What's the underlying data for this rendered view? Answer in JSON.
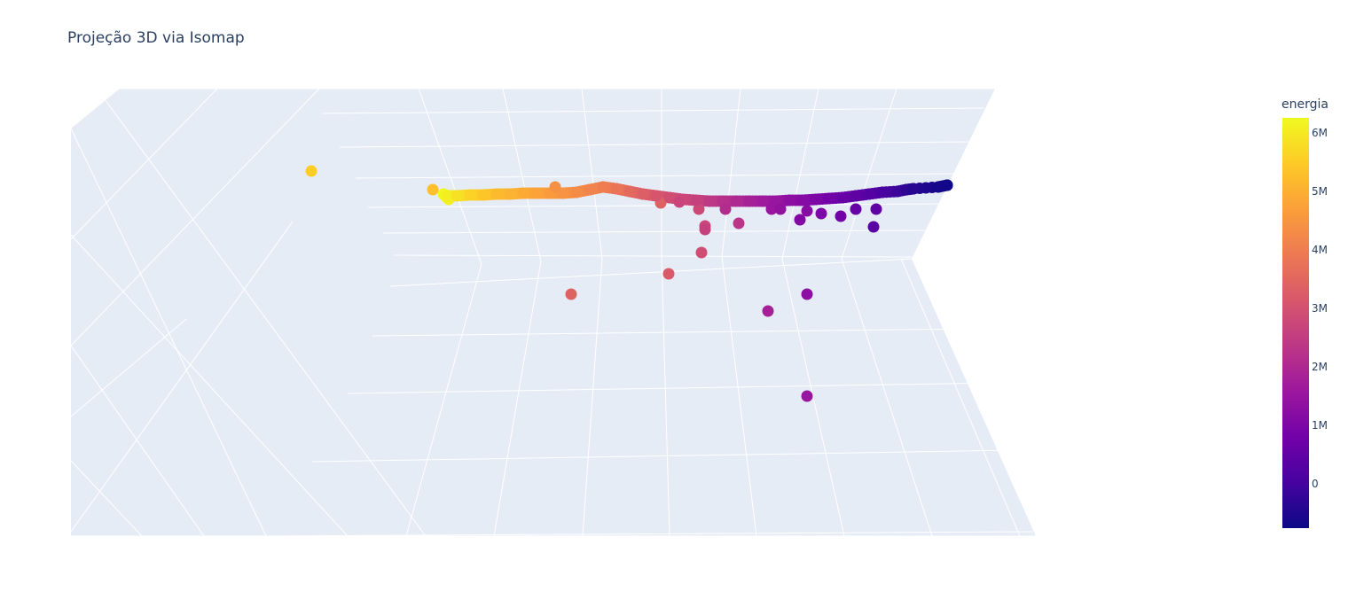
{
  "chart_data": {
    "type": "scatter",
    "subtype": "scatter3d",
    "title": "Projeção 3D via Isomap",
    "xlabel": "",
    "ylabel": "",
    "zlabel": "",
    "grid": true,
    "legend": "none",
    "colorbar": {
      "title": "energia",
      "colorscale": [
        "#0d0887",
        "#46039f",
        "#7201a8",
        "#9c179e",
        "#bd3786",
        "#d8576b",
        "#ed7953",
        "#fb9f3a",
        "#fdca26",
        "#f0f921"
      ],
      "range": [
        -750000,
        6250000
      ],
      "ticks": [
        {
          "value": 0,
          "label": "0"
        },
        {
          "value": 1000000,
          "label": "1M"
        },
        {
          "value": 2000000,
          "label": "2M"
        },
        {
          "value": 3000000,
          "label": "3M"
        },
        {
          "value": 4000000,
          "label": "4M"
        },
        {
          "value": 5000000,
          "label": "5M"
        },
        {
          "value": 6000000,
          "label": "6M"
        }
      ]
    },
    "note_axes": "3D projected scene; points given in projected screen-plane data units (u = horizontal, v = vertical, larger v higher) with energia color value",
    "series": [
      {
        "values_u_v_energia": [
          [
            1068,
            209,
            -700000
          ],
          [
            1058,
            211,
            -650000
          ],
          [
            1030,
            213,
            -400000
          ],
          [
            1022,
            214,
            -300000
          ],
          [
            1012,
            216,
            -100000
          ],
          [
            995,
            217,
            100000
          ],
          [
            980,
            219,
            300000
          ],
          [
            965,
            221,
            450000
          ],
          [
            950,
            223,
            600000
          ],
          [
            935,
            224,
            800000
          ],
          [
            920,
            225,
            1000000
          ],
          [
            905,
            226,
            1150000
          ],
          [
            890,
            226,
            1300000
          ],
          [
            875,
            227,
            1500000
          ],
          [
            860,
            227,
            1650000
          ],
          [
            845,
            227,
            1800000
          ],
          [
            830,
            227,
            2000000
          ],
          [
            815,
            227,
            2200000
          ],
          [
            800,
            227,
            2400000
          ],
          [
            785,
            226,
            2600000
          ],
          [
            770,
            225,
            2750000
          ],
          [
            755,
            223,
            2900000
          ],
          [
            740,
            221,
            3100000
          ],
          [
            725,
            219,
            3300000
          ],
          [
            710,
            216,
            3550000
          ],
          [
            695,
            213,
            3800000
          ],
          [
            680,
            211,
            4000000
          ],
          [
            665,
            214,
            4150000
          ],
          [
            650,
            217,
            4300000
          ],
          [
            635,
            218,
            4450000
          ],
          [
            620,
            218,
            4600000
          ],
          [
            605,
            218,
            4750000
          ],
          [
            590,
            218,
            4900000
          ],
          [
            575,
            219,
            5050000
          ],
          [
            560,
            219,
            5200000
          ],
          [
            545,
            220,
            5400000
          ],
          [
            530,
            220,
            5600000
          ],
          [
            515,
            221,
            5850000
          ],
          [
            505,
            221,
            6050000
          ],
          [
            500,
            219,
            6200000
          ],
          [
            506,
            225,
            6100000
          ],
          [
            488,
            214,
            5300000
          ],
          [
            351,
            193,
            5500000
          ],
          [
            626,
            211,
            4400000
          ],
          [
            1068,
            209,
            -700000
          ],
          [
            988,
            236,
            500000
          ],
          [
            985,
            256,
            400000
          ],
          [
            965,
            236,
            600000
          ],
          [
            948,
            244,
            800000
          ],
          [
            926,
            241,
            1000000
          ],
          [
            910,
            238,
            1200000
          ],
          [
            902,
            248,
            1100000
          ],
          [
            880,
            236,
            1400000
          ],
          [
            870,
            236,
            1500000
          ],
          [
            833,
            252,
            2300000
          ],
          [
            818,
            236,
            2100000
          ],
          [
            795,
            255,
            2700000
          ],
          [
            795,
            259,
            2600000
          ],
          [
            788,
            236,
            2800000
          ],
          [
            791,
            285,
            2900000
          ],
          [
            766,
            228,
            2700000
          ],
          [
            754,
            309,
            3200000
          ],
          [
            745,
            229,
            3400000
          ],
          [
            644,
            332,
            3400000
          ],
          [
            910,
            332,
            1300000
          ],
          [
            866,
            351,
            1800000
          ],
          [
            910,
            447,
            1500000
          ]
        ]
      }
    ]
  }
}
